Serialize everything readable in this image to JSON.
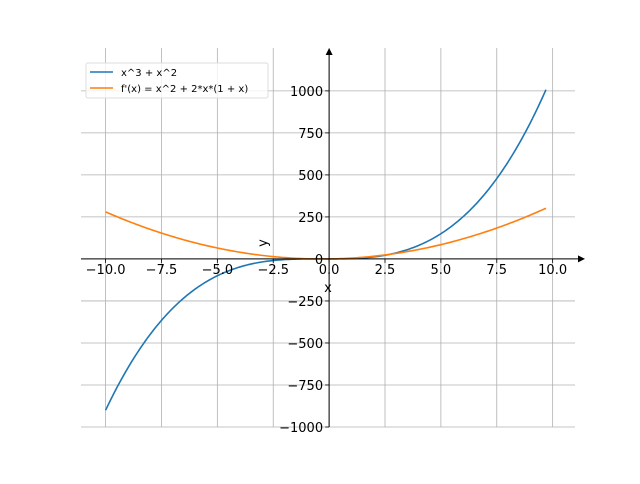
{
  "chart_data": {
    "type": "line",
    "title": "",
    "xlabel": "x",
    "ylabel": "y",
    "xlim": [
      -11.1,
      11.0
    ],
    "ylim": [
      -1000,
      1255
    ],
    "grid": true,
    "legend_placement": "top-left",
    "x_ticks": [
      -10.0,
      -7.5,
      -5.0,
      -2.5,
      0.0,
      2.5,
      5.0,
      7.5,
      10.0
    ],
    "x_tick_labels": [
      "−10.0",
      "−7.5",
      "−5.0",
      "−2.5",
      "0.0",
      "2.5",
      "5.0",
      "7.5",
      "10.0"
    ],
    "y_ticks": [
      -1000,
      -750,
      -500,
      -250,
      0,
      250,
      500,
      750,
      1000
    ],
    "y_tick_labels": [
      "−1000",
      "−750",
      "−500",
      "−250",
      "0",
      "250",
      "500",
      "750",
      "1000"
    ],
    "x_range": [
      -10,
      9.7
    ],
    "series": [
      {
        "name": "x^3 + x^2",
        "expression": "x^3 + x^2",
        "color": "#1f77b4"
      },
      {
        "name": "f'(x) = x^2 + 2*x*(1 + x)",
        "expression": "x^2 + 2*x*(1 + x)",
        "color": "#ff7f0e"
      }
    ]
  }
}
